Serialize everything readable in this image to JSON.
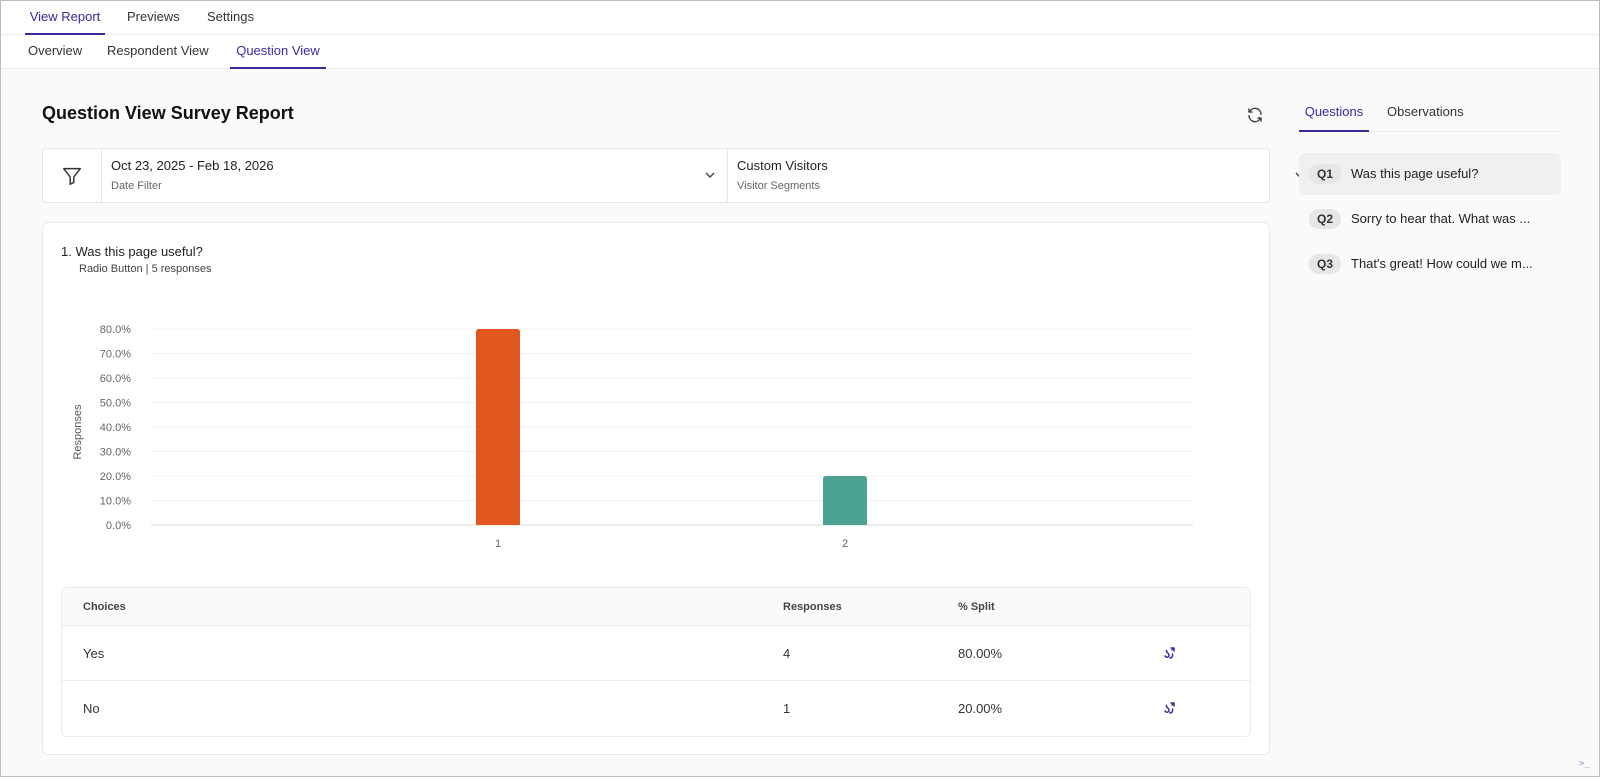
{
  "top_tabs": [
    {
      "label": "View Report",
      "active": true
    },
    {
      "label": "Previews",
      "active": false
    },
    {
      "label": "Settings",
      "active": false
    }
  ],
  "sub_tabs": [
    {
      "label": "Overview",
      "active": false
    },
    {
      "label": "Respondent View",
      "active": false
    },
    {
      "label": "Question View",
      "active": true
    }
  ],
  "page": {
    "title": "Question View Survey Report"
  },
  "filters": {
    "date": {
      "value": "Oct 23, 2025 - Feb 18, 2026",
      "label": "Date Filter"
    },
    "visitors": {
      "value": "Custom Visitors",
      "label": "Visitor Segments"
    }
  },
  "question": {
    "heading": "1. Was this page useful?",
    "meta": "Radio Button | 5 responses"
  },
  "chart_data": {
    "type": "bar",
    "categories": [
      "1",
      "2"
    ],
    "values": [
      80.0,
      20.0
    ],
    "colors": [
      "#e2561f",
      "#4da391"
    ],
    "ylabel": "Responses",
    "ylim": [
      0,
      80
    ],
    "yticks": [
      "0.0%",
      "10.0%",
      "20.0%",
      "30.0%",
      "40.0%",
      "50.0%",
      "60.0%",
      "70.0%",
      "80.0%"
    ],
    "grid": true
  },
  "table": {
    "headers": [
      "Choices",
      "Responses",
      "% Split"
    ],
    "rows": [
      {
        "choice": "Yes",
        "responses": "4",
        "split": "80.00%"
      },
      {
        "choice": "No",
        "responses": "1",
        "split": "20.00%"
      }
    ]
  },
  "side_tabs": [
    {
      "label": "Questions",
      "active": true
    },
    {
      "label": "Observations",
      "active": false
    }
  ],
  "questions": [
    {
      "badge": "Q1",
      "text": "Was this page useful?",
      "active": true
    },
    {
      "badge": "Q2",
      "text": "Sorry to hear that. What was ...",
      "active": false
    },
    {
      "badge": "Q3",
      "text": "That's great! How could we m...",
      "active": false
    }
  ],
  "colors": {
    "accent": "#3b2a9c",
    "bar_primary": "#e2561f",
    "bar_secondary": "#4da391"
  }
}
